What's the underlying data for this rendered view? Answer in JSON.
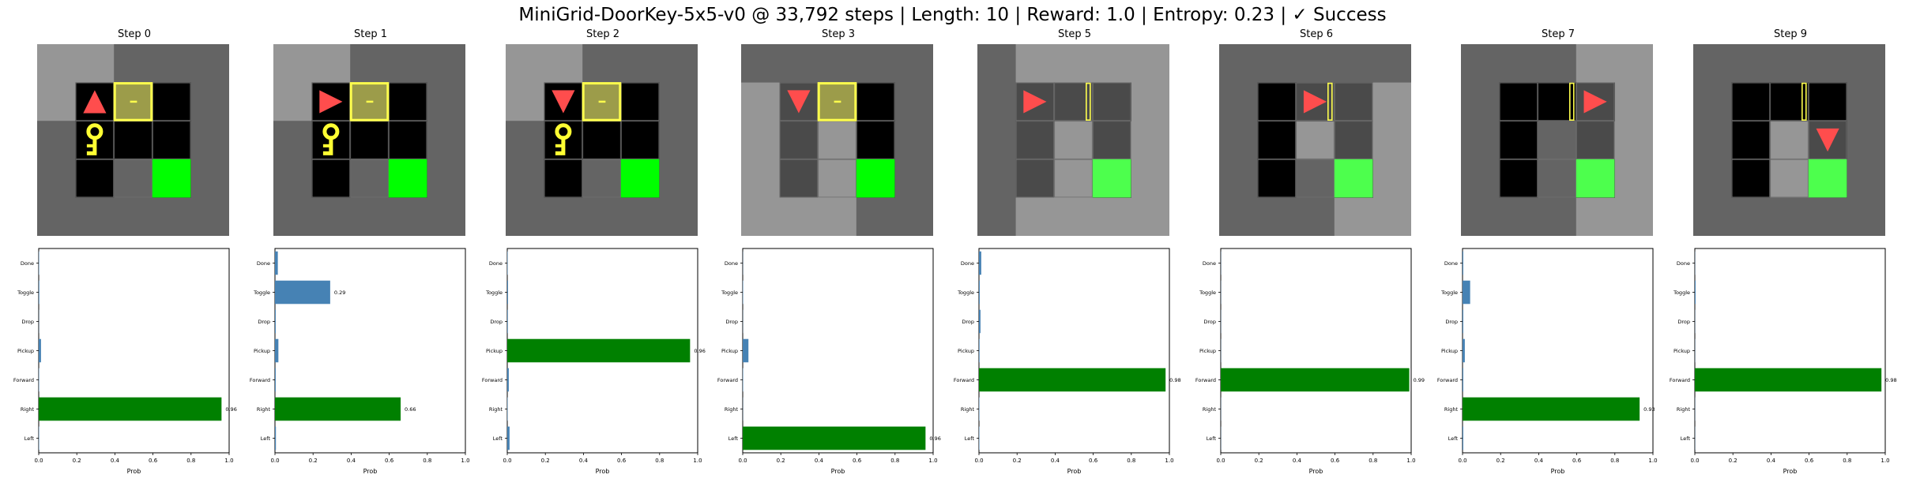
{
  "figure": {
    "suptitle": "MiniGrid-DoorKey-5x5-v0 @ 33,792 steps | Length: 10 | Reward: 1.0 | Entropy: 0.23 | ✓ Success"
  },
  "colors": {
    "chosen_bar": "#008000",
    "other_bar": "#4682b4",
    "agent": "#ff4d4d",
    "key": "#ffff33",
    "goal_bright": "#00ff00",
    "goal_dim": "#4dff4d",
    "wall_dark": "#646464",
    "wall_light": "#969696",
    "floor_black": "#000000",
    "floor_seen": "#4a4a4a",
    "door_locked_fill": "#9c9c4a",
    "door_outline": "#ffff4d"
  },
  "steps": [
    {
      "title": "Step 0",
      "agent_dir": "up",
      "state": "start"
    },
    {
      "title": "Step 1",
      "agent_dir": "right",
      "state": "start"
    },
    {
      "title": "Step 2",
      "agent_dir": "down",
      "state": "start"
    },
    {
      "title": "Step 3",
      "agent_dir": "down",
      "state": "key_picked"
    },
    {
      "title": "Step 5",
      "agent_dir": "right",
      "state": "door_open"
    },
    {
      "title": "Step 6",
      "agent_dir": "right",
      "state": "in_doorway"
    },
    {
      "title": "Step 7",
      "agent_dir": "right",
      "state": "past_door"
    },
    {
      "title": "Step 9",
      "agent_dir": "down",
      "state": "near_goal"
    }
  ],
  "chart_data": [
    {
      "type": "bar",
      "title": "Step 0",
      "xlabel": "Prob",
      "xlim": [
        0,
        1.0
      ],
      "xticks": [
        "0.0",
        "0.2",
        "0.4",
        "0.6",
        "0.8",
        "1.0"
      ],
      "categories": [
        "Done",
        "Toggle",
        "Drop",
        "Pickup",
        "Forward",
        "Right",
        "Left"
      ],
      "values": [
        0.002,
        0.003,
        0.001,
        0.012,
        0.002,
        0.96,
        0.002
      ],
      "chosen": "Right",
      "labels": [
        {
          "category": "Right",
          "text": "0.96"
        }
      ]
    },
    {
      "type": "bar",
      "title": "Step 1",
      "xlabel": "Prob",
      "xlim": [
        0,
        1.0
      ],
      "xticks": [
        "0.0",
        "0.2",
        "0.4",
        "0.6",
        "0.8",
        "1.0"
      ],
      "categories": [
        "Done",
        "Toggle",
        "Drop",
        "Pickup",
        "Forward",
        "Right",
        "Left"
      ],
      "values": [
        0.015,
        0.29,
        0.004,
        0.018,
        0.004,
        0.66,
        0.005
      ],
      "chosen": "Right",
      "labels": [
        {
          "category": "Toggle",
          "text": "0.29"
        },
        {
          "category": "Right",
          "text": "0.66"
        }
      ]
    },
    {
      "type": "bar",
      "title": "Step 2",
      "xlabel": "Prob",
      "xlim": [
        0,
        1.0
      ],
      "xticks": [
        "0.0",
        "0.2",
        "0.4",
        "0.6",
        "0.8",
        "1.0"
      ],
      "categories": [
        "Done",
        "Toggle",
        "Drop",
        "Pickup",
        "Forward",
        "Right",
        "Left"
      ],
      "values": [
        0.002,
        0.004,
        0.003,
        0.96,
        0.008,
        0.002,
        0.012
      ],
      "chosen": "Pickup",
      "labels": [
        {
          "category": "Pickup",
          "text": "0.96"
        }
      ]
    },
    {
      "type": "bar",
      "title": "Step 3",
      "xlabel": "Prob",
      "xlim": [
        0,
        1.0
      ],
      "xticks": [
        "0.0",
        "0.2",
        "0.4",
        "0.6",
        "0.8",
        "1.0"
      ],
      "categories": [
        "Done",
        "Toggle",
        "Drop",
        "Pickup",
        "Forward",
        "Right",
        "Left"
      ],
      "values": [
        0.001,
        0.002,
        0.001,
        0.03,
        0.002,
        0.001,
        0.96
      ],
      "chosen": "Left",
      "labels": [
        {
          "category": "Left",
          "text": "0.96"
        }
      ]
    },
    {
      "type": "bar",
      "title": "Step 5",
      "xlabel": "Prob",
      "xlim": [
        0,
        1.0
      ],
      "xticks": [
        "0.0",
        "0.2",
        "0.4",
        "0.6",
        "0.8",
        "1.0"
      ],
      "categories": [
        "Done",
        "Toggle",
        "Drop",
        "Pickup",
        "Forward",
        "Right",
        "Left"
      ],
      "values": [
        0.012,
        0.004,
        0.008,
        0.003,
        0.98,
        0.002,
        0.002
      ],
      "chosen": "Forward",
      "labels": [
        {
          "category": "Forward",
          "text": "0.98"
        }
      ]
    },
    {
      "type": "bar",
      "title": "Step 6",
      "xlabel": "Prob",
      "xlim": [
        0,
        1.0
      ],
      "xticks": [
        "0.0",
        "0.2",
        "0.4",
        "0.6",
        "0.8",
        "1.0"
      ],
      "categories": [
        "Done",
        "Toggle",
        "Drop",
        "Pickup",
        "Forward",
        "Right",
        "Left"
      ],
      "values": [
        0.001,
        0.001,
        0.001,
        0.001,
        0.99,
        0.001,
        0.001
      ],
      "chosen": "Forward",
      "labels": [
        {
          "category": "Forward",
          "text": "0.99"
        }
      ]
    },
    {
      "type": "bar",
      "title": "Step 7",
      "xlabel": "Prob",
      "xlim": [
        0,
        1.0
      ],
      "xticks": [
        "0.0",
        "0.2",
        "0.4",
        "0.6",
        "0.8",
        "1.0"
      ],
      "categories": [
        "Done",
        "Toggle",
        "Drop",
        "Pickup",
        "Forward",
        "Right",
        "Left"
      ],
      "values": [
        0.004,
        0.04,
        0.004,
        0.012,
        0.004,
        0.93,
        0.004
      ],
      "chosen": "Right",
      "labels": [
        {
          "category": "Right",
          "text": "0.93"
        }
      ]
    },
    {
      "type": "bar",
      "title": "Step 9",
      "xlabel": "Prob",
      "xlim": [
        0,
        1.0
      ],
      "xticks": [
        "0.0",
        "0.2",
        "0.4",
        "0.6",
        "0.8",
        "1.0"
      ],
      "categories": [
        "Done",
        "Toggle",
        "Drop",
        "Pickup",
        "Forward",
        "Right",
        "Left"
      ],
      "values": [
        0.001,
        0.004,
        0.001,
        0.001,
        0.98,
        0.001,
        0.001
      ],
      "chosen": "Forward",
      "labels": [
        {
          "category": "Forward",
          "text": "0.98"
        }
      ]
    }
  ]
}
